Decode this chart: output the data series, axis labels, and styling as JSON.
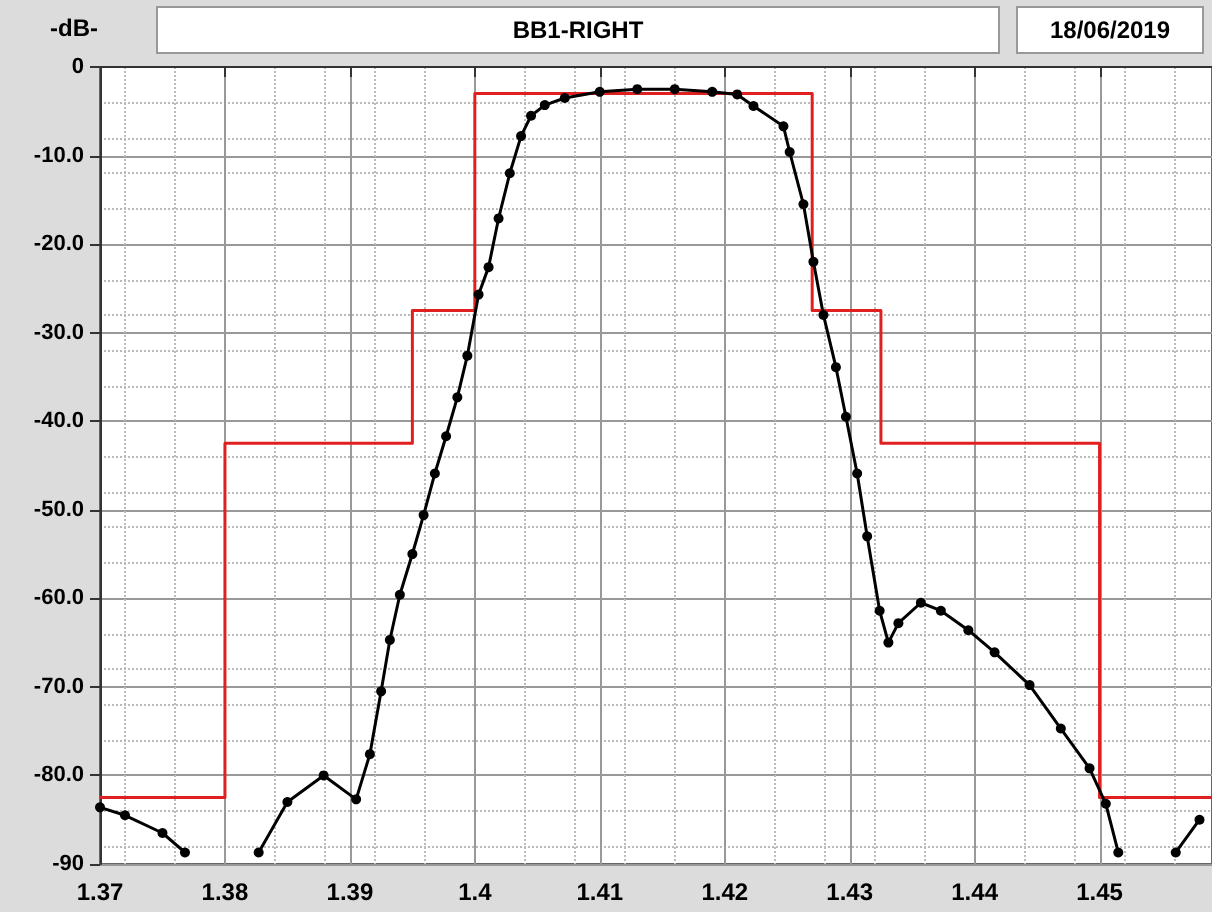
{
  "chart_data": {
    "type": "line",
    "title": "BB1-RIGHT",
    "ylabel": "-dB-",
    "annotations": [
      "18/06/2019"
    ],
    "xlim": [
      1.37,
      1.459
    ],
    "xticks": [
      1.37,
      1.38,
      1.39,
      1.4,
      1.41,
      1.42,
      1.43,
      1.44,
      1.45
    ],
    "ylim": [
      -90,
      0
    ],
    "yticks": [
      0,
      {
        "value": -10,
        "label": "-10.0"
      },
      {
        "value": -20,
        "label": "-20.0"
      },
      {
        "value": -30,
        "label": "-30.0"
      },
      {
        "value": -40,
        "label": "-40.0"
      },
      {
        "value": -50,
        "label": "-50.0"
      },
      {
        "value": -60,
        "label": "-60.0"
      },
      {
        "value": -70,
        "label": "-70.0"
      },
      {
        "value": -80,
        "label": "-80.0"
      },
      -90
    ],
    "grid": true,
    "series": [
      {
        "type": "step",
        "color": "#e02020",
        "marker": "none",
        "x": [
          1.37,
          1.38,
          1.395,
          1.4,
          1.427,
          1.4325,
          1.45,
          1.459
        ],
        "values": [
          -82.5,
          -42.5,
          -27.5,
          -3,
          -27.5,
          -42.5,
          -82.5,
          -82.5
        ]
      },
      {
        "type": "line",
        "color": "#000000",
        "marker": "circle",
        "x": [
          1.37,
          1.372,
          1.375,
          1.3768,
          1.38,
          1.3827,
          1.385,
          1.3879,
          1.3905,
          1.3916,
          1.3925,
          1.3932,
          1.394,
          1.395,
          1.3959,
          1.3968,
          1.3977,
          1.3986,
          1.3994,
          1.4003,
          1.4011,
          1.4019,
          1.4028,
          1.4037,
          1.4045,
          1.4056,
          1.4072,
          1.41,
          1.413,
          1.416,
          1.419,
          1.421,
          1.4223,
          1.4247,
          1.4252,
          1.4263,
          1.4271,
          1.4279,
          1.4289,
          1.4297,
          1.4306,
          1.4314,
          1.4324,
          1.4331,
          1.4339,
          1.4357,
          1.4373,
          1.4395,
          1.4416,
          1.4444,
          1.4469,
          1.4492,
          1.4505,
          1.4515,
          1.454,
          1.4561,
          1.458
        ],
        "values": [
          -83.6,
          -84.5,
          -86.5,
          -88.7,
          null,
          -88.7,
          -83,
          -80,
          -82.7,
          -77.6,
          -70.5,
          -64.7,
          -59.6,
          -55,
          -50.6,
          -45.9,
          -41.7,
          -37.3,
          -32.6,
          -25.7,
          -22.6,
          -17.1,
          -12,
          -7.8,
          -5.5,
          -4.3,
          -3.5,
          -2.8,
          -2.5,
          -2.5,
          -2.8,
          -3.1,
          -4.4,
          -6.7,
          -9.6,
          -15.5,
          -22,
          -28,
          -33.9,
          -39.5,
          -45.9,
          -53,
          -61.4,
          -65,
          -62.8,
          -60.5,
          -61.4,
          -63.6,
          -66.1,
          -69.8,
          -74.7,
          -79.2,
          -83.2,
          -88.7,
          null,
          -88.7,
          -85
        ]
      }
    ]
  }
}
